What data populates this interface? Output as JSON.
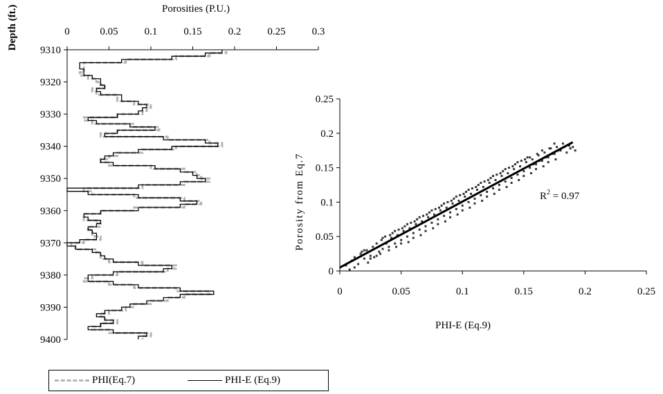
{
  "chart_data": [
    {
      "type": "line",
      "orientation": "depth-log",
      "title": "Porosities (P.U.)",
      "xlabel": "Porosities (P.U.)",
      "ylabel": "Depth (ft.)",
      "xlim": [
        0,
        0.3
      ],
      "ylim": [
        9310,
        9400
      ],
      "y_inverted": true,
      "x_ticks": [
        "0",
        "0.05",
        "0.1",
        "0.15",
        "0.2",
        "0.25",
        "0.3"
      ],
      "y_ticks": [
        "9310",
        "9320",
        "9330",
        "9340",
        "9350",
        "9360",
        "9370",
        "9380",
        "9390",
        "9400"
      ],
      "legend_position": "bottom",
      "series": [
        {
          "name": "PHI(Eq.7)",
          "color": "#b4b4b4",
          "style": "dashed",
          "depth": [
            9310,
            9311,
            9312,
            9313,
            9314,
            9315,
            9316,
            9317,
            9318,
            9319,
            9320,
            9321,
            9322,
            9323,
            9324,
            9325,
            9326,
            9327,
            9328,
            9329,
            9330,
            9331,
            9332,
            9333,
            9334,
            9335,
            9336,
            9337,
            9338,
            9339,
            9340,
            9341,
            9342,
            9343,
            9344,
            9345,
            9346,
            9347,
            9348,
            9349,
            9350,
            9351,
            9352,
            9353,
            9354,
            9355,
            9356,
            9357,
            9358,
            9359,
            9360,
            9361,
            9362,
            9363,
            9364,
            9365,
            9366,
            9367,
            9368,
            9369,
            9370,
            9371,
            9372,
            9373,
            9374,
            9375,
            9376,
            9377,
            9378,
            9379,
            9380,
            9381,
            9382,
            9383,
            9384,
            9385,
            9386,
            9387,
            9388,
            9389,
            9390,
            9391,
            9392,
            9393,
            9394,
            9395,
            9396,
            9397,
            9398,
            9399
          ],
          "values": [
            0.19,
            0.17,
            0.13,
            0.07,
            0.02,
            0.02,
            0.02,
            0.015,
            0.025,
            0.035,
            0.04,
            0.045,
            0.03,
            0.035,
            0.06,
            0.06,
            0.08,
            0.1,
            0.095,
            0.09,
            0.06,
            0.02,
            0.03,
            0.08,
            0.11,
            0.06,
            0.04,
            0.12,
            0.17,
            0.185,
            0.13,
            0.09,
            0.06,
            0.05,
            0.04,
            0.05,
            0.1,
            0.14,
            0.155,
            0.16,
            0.17,
            0.14,
            0.09,
            0.02,
            0.03,
            0.08,
            0.14,
            0.16,
            0.14,
            0.08,
            0.04,
            0.02,
            0.02,
            0.035,
            0.04,
            0.025,
            0.03,
            0.03,
            0.04,
            0.02,
            0.005,
            0.01,
            0.035,
            0.04,
            0.04,
            0.05,
            0.09,
            0.13,
            0.12,
            0.06,
            0.03,
            0.02,
            0.05,
            0.08,
            0.13,
            0.17,
            0.14,
            0.12,
            0.1,
            0.08,
            0.07,
            0.05,
            0.04,
            0.045,
            0.06,
            0.04,
            0.03,
            0.05,
            0.1,
            0.09
          ]
        },
        {
          "name": "PHI-E (Eq.9)",
          "color": "#000000",
          "style": "solid",
          "depth": [
            9310,
            9311,
            9312,
            9313,
            9314,
            9315,
            9316,
            9317,
            9318,
            9319,
            9320,
            9321,
            9322,
            9323,
            9324,
            9325,
            9326,
            9327,
            9328,
            9329,
            9330,
            9331,
            9332,
            9333,
            9334,
            9335,
            9336,
            9337,
            9338,
            9339,
            9340,
            9341,
            9342,
            9343,
            9344,
            9345,
            9346,
            9347,
            9348,
            9349,
            9350,
            9351,
            9352,
            9353,
            9354,
            9355,
            9356,
            9357,
            9358,
            9359,
            9360,
            9361,
            9362,
            9363,
            9364,
            9365,
            9366,
            9367,
            9368,
            9369,
            9370,
            9371,
            9372,
            9373,
            9374,
            9375,
            9376,
            9377,
            9378,
            9379,
            9380,
            9381,
            9382,
            9383,
            9384,
            9385,
            9386,
            9387,
            9388,
            9389,
            9390,
            9391,
            9392,
            9393,
            9394,
            9395,
            9396,
            9397,
            9398,
            9399
          ],
          "values": [
            0.185,
            0.165,
            0.125,
            0.065,
            0.015,
            0.015,
            0.02,
            0.02,
            0.03,
            0.04,
            0.04,
            0.045,
            0.035,
            0.04,
            0.065,
            0.065,
            0.085,
            0.095,
            0.09,
            0.085,
            0.06,
            0.025,
            0.035,
            0.075,
            0.105,
            0.06,
            0.045,
            0.115,
            0.165,
            0.18,
            0.125,
            0.085,
            0.055,
            0.045,
            0.04,
            0.055,
            0.105,
            0.135,
            0.15,
            0.155,
            0.165,
            0.135,
            0.085,
            0.0,
            0.025,
            0.085,
            0.135,
            0.155,
            0.135,
            0.085,
            0.04,
            0.02,
            0.025,
            0.04,
            0.035,
            0.025,
            0.03,
            0.035,
            0.035,
            0.015,
            0.0,
            0.01,
            0.03,
            0.04,
            0.045,
            0.055,
            0.085,
            0.125,
            0.115,
            0.055,
            0.025,
            0.025,
            0.055,
            0.085,
            0.135,
            0.175,
            0.135,
            0.115,
            0.095,
            0.075,
            0.065,
            0.045,
            0.035,
            0.045,
            0.055,
            0.04,
            0.025,
            0.055,
            0.095,
            0.085
          ]
        }
      ]
    },
    {
      "type": "scatter",
      "title": "",
      "xlabel": "PHI-E (Eq.9)",
      "ylabel": "Porosity from Eq.7",
      "xlim": [
        0,
        0.25
      ],
      "ylim": [
        0,
        0.25
      ],
      "x_ticks": [
        "0",
        "0.05",
        "0.1",
        "0.15",
        "0.2",
        "0.25"
      ],
      "y_ticks": [
        "0",
        "0.05",
        "0.1",
        "0.15",
        "0.2",
        "0.25"
      ],
      "annotation": {
        "base": "R",
        "sup": "2",
        "rest": " = 0.97"
      },
      "trendline": {
        "x": [
          0.0,
          0.19
        ],
        "y": [
          0.005,
          0.187
        ],
        "color": "#000000"
      },
      "point_color": "#333333",
      "points": [
        [
          0.005,
          0.008
        ],
        [
          0.008,
          0.002
        ],
        [
          0.01,
          0.015
        ],
        [
          0.012,
          0.02
        ],
        [
          0.015,
          0.01
        ],
        [
          0.017,
          0.025
        ],
        [
          0.02,
          0.018
        ],
        [
          0.022,
          0.03
        ],
        [
          0.025,
          0.022
        ],
        [
          0.027,
          0.035
        ],
        [
          0.028,
          0.02
        ],
        [
          0.03,
          0.04
        ],
        [
          0.032,
          0.028
        ],
        [
          0.034,
          0.045
        ],
        [
          0.035,
          0.032
        ],
        [
          0.037,
          0.05
        ],
        [
          0.038,
          0.04
        ],
        [
          0.04,
          0.035
        ],
        [
          0.042,
          0.048
        ],
        [
          0.043,
          0.055
        ],
        [
          0.045,
          0.04
        ],
        [
          0.047,
          0.052
        ],
        [
          0.048,
          0.06
        ],
        [
          0.05,
          0.045
        ],
        [
          0.052,
          0.058
        ],
        [
          0.053,
          0.065
        ],
        [
          0.055,
          0.05
        ],
        [
          0.057,
          0.062
        ],
        [
          0.058,
          0.07
        ],
        [
          0.06,
          0.055
        ],
        [
          0.062,
          0.068
        ],
        [
          0.063,
          0.075
        ],
        [
          0.065,
          0.06
        ],
        [
          0.067,
          0.072
        ],
        [
          0.068,
          0.08
        ],
        [
          0.07,
          0.065
        ],
        [
          0.072,
          0.078
        ],
        [
          0.073,
          0.085
        ],
        [
          0.075,
          0.07
        ],
        [
          0.077,
          0.082
        ],
        [
          0.078,
          0.09
        ],
        [
          0.08,
          0.075
        ],
        [
          0.082,
          0.088
        ],
        [
          0.083,
          0.095
        ],
        [
          0.085,
          0.08
        ],
        [
          0.087,
          0.092
        ],
        [
          0.088,
          0.1
        ],
        [
          0.09,
          0.085
        ],
        [
          0.092,
          0.098
        ],
        [
          0.093,
          0.105
        ],
        [
          0.095,
          0.09
        ],
        [
          0.097,
          0.102
        ],
        [
          0.098,
          0.11
        ],
        [
          0.1,
          0.095
        ],
        [
          0.102,
          0.108
        ],
        [
          0.103,
          0.115
        ],
        [
          0.105,
          0.1
        ],
        [
          0.107,
          0.112
        ],
        [
          0.108,
          0.12
        ],
        [
          0.11,
          0.105
        ],
        [
          0.112,
          0.118
        ],
        [
          0.113,
          0.125
        ],
        [
          0.115,
          0.11
        ],
        [
          0.117,
          0.122
        ],
        [
          0.118,
          0.13
        ],
        [
          0.12,
          0.115
        ],
        [
          0.122,
          0.128
        ],
        [
          0.123,
          0.135
        ],
        [
          0.125,
          0.12
        ],
        [
          0.127,
          0.132
        ],
        [
          0.128,
          0.14
        ],
        [
          0.13,
          0.125
        ],
        [
          0.132,
          0.138
        ],
        [
          0.133,
          0.145
        ],
        [
          0.135,
          0.13
        ],
        [
          0.137,
          0.142
        ],
        [
          0.138,
          0.15
        ],
        [
          0.14,
          0.135
        ],
        [
          0.142,
          0.148
        ],
        [
          0.143,
          0.155
        ],
        [
          0.145,
          0.14
        ],
        [
          0.147,
          0.152
        ],
        [
          0.148,
          0.16
        ],
        [
          0.15,
          0.145
        ],
        [
          0.152,
          0.158
        ],
        [
          0.153,
          0.165
        ],
        [
          0.155,
          0.15
        ],
        [
          0.157,
          0.162
        ],
        [
          0.158,
          0.155
        ],
        [
          0.16,
          0.155
        ],
        [
          0.162,
          0.168
        ],
        [
          0.163,
          0.16
        ],
        [
          0.165,
          0.16
        ],
        [
          0.167,
          0.172
        ],
        [
          0.168,
          0.165
        ],
        [
          0.17,
          0.165
        ],
        [
          0.172,
          0.178
        ],
        [
          0.173,
          0.17
        ],
        [
          0.175,
          0.17
        ],
        [
          0.177,
          0.18
        ],
        [
          0.178,
          0.175
        ],
        [
          0.18,
          0.175
        ],
        [
          0.182,
          0.185
        ],
        [
          0.183,
          0.18
        ],
        [
          0.185,
          0.172
        ],
        [
          0.187,
          0.182
        ],
        [
          0.188,
          0.178
        ],
        [
          0.19,
          0.18
        ],
        [
          0.192,
          0.175
        ],
        [
          0.02,
          0.03
        ],
        [
          0.025,
          0.018
        ],
        [
          0.03,
          0.022
        ],
        [
          0.035,
          0.048
        ],
        [
          0.04,
          0.03
        ],
        [
          0.045,
          0.058
        ],
        [
          0.05,
          0.04
        ],
        [
          0.055,
          0.068
        ],
        [
          0.06,
          0.048
        ],
        [
          0.065,
          0.078
        ],
        [
          0.07,
          0.058
        ],
        [
          0.075,
          0.088
        ],
        [
          0.08,
          0.068
        ],
        [
          0.085,
          0.098
        ],
        [
          0.09,
          0.078
        ],
        [
          0.095,
          0.108
        ],
        [
          0.1,
          0.088
        ],
        [
          0.105,
          0.118
        ],
        [
          0.11,
          0.098
        ],
        [
          0.115,
          0.128
        ],
        [
          0.12,
          0.108
        ],
        [
          0.125,
          0.138
        ],
        [
          0.13,
          0.118
        ],
        [
          0.135,
          0.148
        ],
        [
          0.14,
          0.128
        ],
        [
          0.145,
          0.158
        ],
        [
          0.15,
          0.138
        ],
        [
          0.155,
          0.165
        ],
        [
          0.16,
          0.148
        ],
        [
          0.165,
          0.175
        ],
        [
          0.17,
          0.158
        ],
        [
          0.175,
          0.185
        ],
        [
          0.012,
          0.005
        ],
        [
          0.018,
          0.028
        ],
        [
          0.023,
          0.012
        ],
        [
          0.033,
          0.025
        ],
        [
          0.041,
          0.052
        ],
        [
          0.046,
          0.035
        ],
        [
          0.051,
          0.062
        ],
        [
          0.056,
          0.042
        ],
        [
          0.061,
          0.072
        ],
        [
          0.066,
          0.052
        ],
        [
          0.071,
          0.082
        ],
        [
          0.076,
          0.062
        ],
        [
          0.081,
          0.092
        ],
        [
          0.086,
          0.072
        ],
        [
          0.091,
          0.102
        ],
        [
          0.096,
          0.082
        ],
        [
          0.101,
          0.112
        ],
        [
          0.106,
          0.092
        ],
        [
          0.111,
          0.122
        ],
        [
          0.116,
          0.102
        ],
        [
          0.121,
          0.132
        ],
        [
          0.126,
          0.112
        ],
        [
          0.131,
          0.142
        ],
        [
          0.136,
          0.122
        ],
        [
          0.141,
          0.152
        ],
        [
          0.146,
          0.132
        ],
        [
          0.151,
          0.162
        ],
        [
          0.156,
          0.142
        ],
        [
          0.161,
          0.17
        ],
        [
          0.166,
          0.152
        ],
        [
          0.171,
          0.178
        ],
        [
          0.176,
          0.162
        ]
      ]
    }
  ]
}
